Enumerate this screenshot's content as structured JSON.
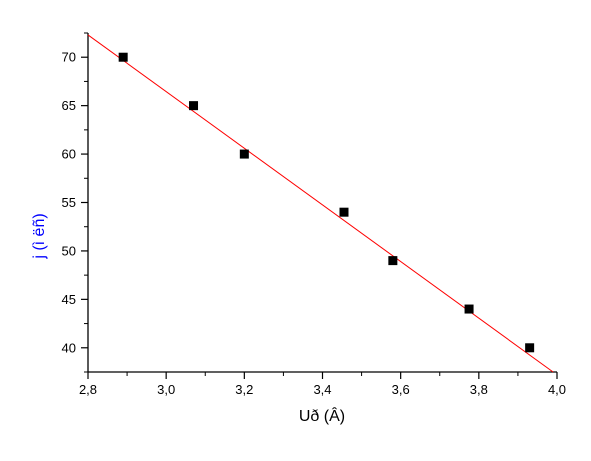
{
  "chart_data": {
    "type": "scatter",
    "xlabel": "Uð (Â)",
    "ylabel": "j (ì ëñ)",
    "xlim": [
      2.8,
      4.0
    ],
    "ylim": [
      37.5,
      72.5
    ],
    "xticks": [
      2.8,
      3.0,
      3.2,
      3.4,
      3.6,
      3.8,
      4.0
    ],
    "xtick_labels": [
      "2,8",
      "3,0",
      "3,2",
      "3,4",
      "3,6",
      "3,8",
      "4,0"
    ],
    "yticks": [
      40,
      45,
      50,
      55,
      60,
      65,
      70
    ],
    "ytick_labels": [
      "40",
      "45",
      "50",
      "55",
      "60",
      "65",
      "70"
    ],
    "grid": false,
    "series": [
      {
        "x": [
          2.89,
          3.07,
          3.2,
          3.455,
          3.58,
          3.775,
          3.93
        ],
        "y": [
          70,
          65,
          60,
          54,
          49,
          44,
          40
        ],
        "marker": "square",
        "color": "#000000"
      }
    ],
    "fit_line": {
      "x": [
        2.8,
        3.99
      ],
      "y": [
        72.3,
        37.5
      ],
      "color": "#ff0000"
    },
    "colors": {
      "ylabel": "#0000ff",
      "xlabel": "#000000"
    }
  }
}
